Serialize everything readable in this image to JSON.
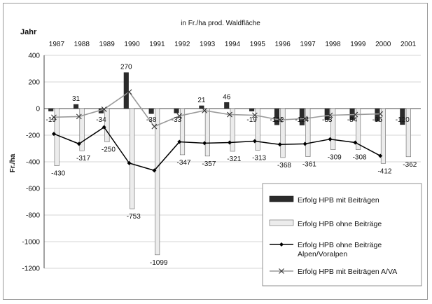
{
  "chart_data": {
    "type": "bar",
    "title": "in Fr./ha prod. Waldfläche",
    "xlabel": "Jahr",
    "ylabel": "Fr./ha",
    "ylim": [
      -1200,
      400
    ],
    "yticks": [
      400,
      200,
      0,
      -200,
      -400,
      -600,
      -800,
      -1000,
      -1200
    ],
    "grid": true,
    "legend_position": "bottom-right",
    "categories": [
      "1987",
      "1988",
      "1989",
      "1990",
      "1991",
      "1992",
      "1993",
      "1994",
      "1995",
      "1996",
      "1997",
      "1998",
      "1999",
      "2000",
      "2001"
    ],
    "series": [
      {
        "name": "Erfolg HPB mit Beiträgen",
        "kind": "bar",
        "color": "#2b2b2b",
        "values": [
          -19,
          31,
          -34,
          270,
          -38,
          -33,
          21,
          46,
          -19,
          -122,
          -124,
          -83,
          -84,
          -95,
          -120
        ],
        "labels": [
          "-19",
          "31",
          "-34",
          "270",
          "-38",
          "-33",
          "21",
          "46",
          "-19",
          "-122",
          "-124",
          "-83",
          "-84",
          "-95",
          "-120"
        ]
      },
      {
        "name": "Erfolg HPB ohne Beiträge",
        "kind": "bar",
        "color": "#ececec",
        "values": [
          -430,
          -317,
          -250,
          -753,
          -1099,
          -347,
          -357,
          -321,
          -313,
          -368,
          -361,
          -309,
          -308,
          -412,
          -362
        ],
        "labels": [
          "-430",
          "-317",
          "-250",
          "-753",
          "-1099",
          "-347",
          "-357",
          "-321",
          "-313",
          "-368",
          "-361",
          "-309",
          "-308",
          "-412",
          "-362"
        ]
      },
      {
        "name": "Erfolg HPB ohne Beiträge Alpen/Voralpen",
        "kind": "line",
        "marker": "diamond",
        "color": "#000000",
        "values": [
          -190,
          -265,
          -140,
          -410,
          -465,
          -250,
          -260,
          -255,
          -245,
          -270,
          -265,
          -230,
          -255,
          -355,
          null
        ]
      },
      {
        "name": "Erfolg HPB mit Beiträgen A/VA",
        "kind": "line",
        "marker": "x",
        "color": "#9a9a9a",
        "values": [
          -65,
          -60,
          -5,
          125,
          -135,
          -55,
          -15,
          -45,
          -50,
          -85,
          -75,
          -50,
          -45,
          -40,
          null
        ]
      }
    ]
  }
}
